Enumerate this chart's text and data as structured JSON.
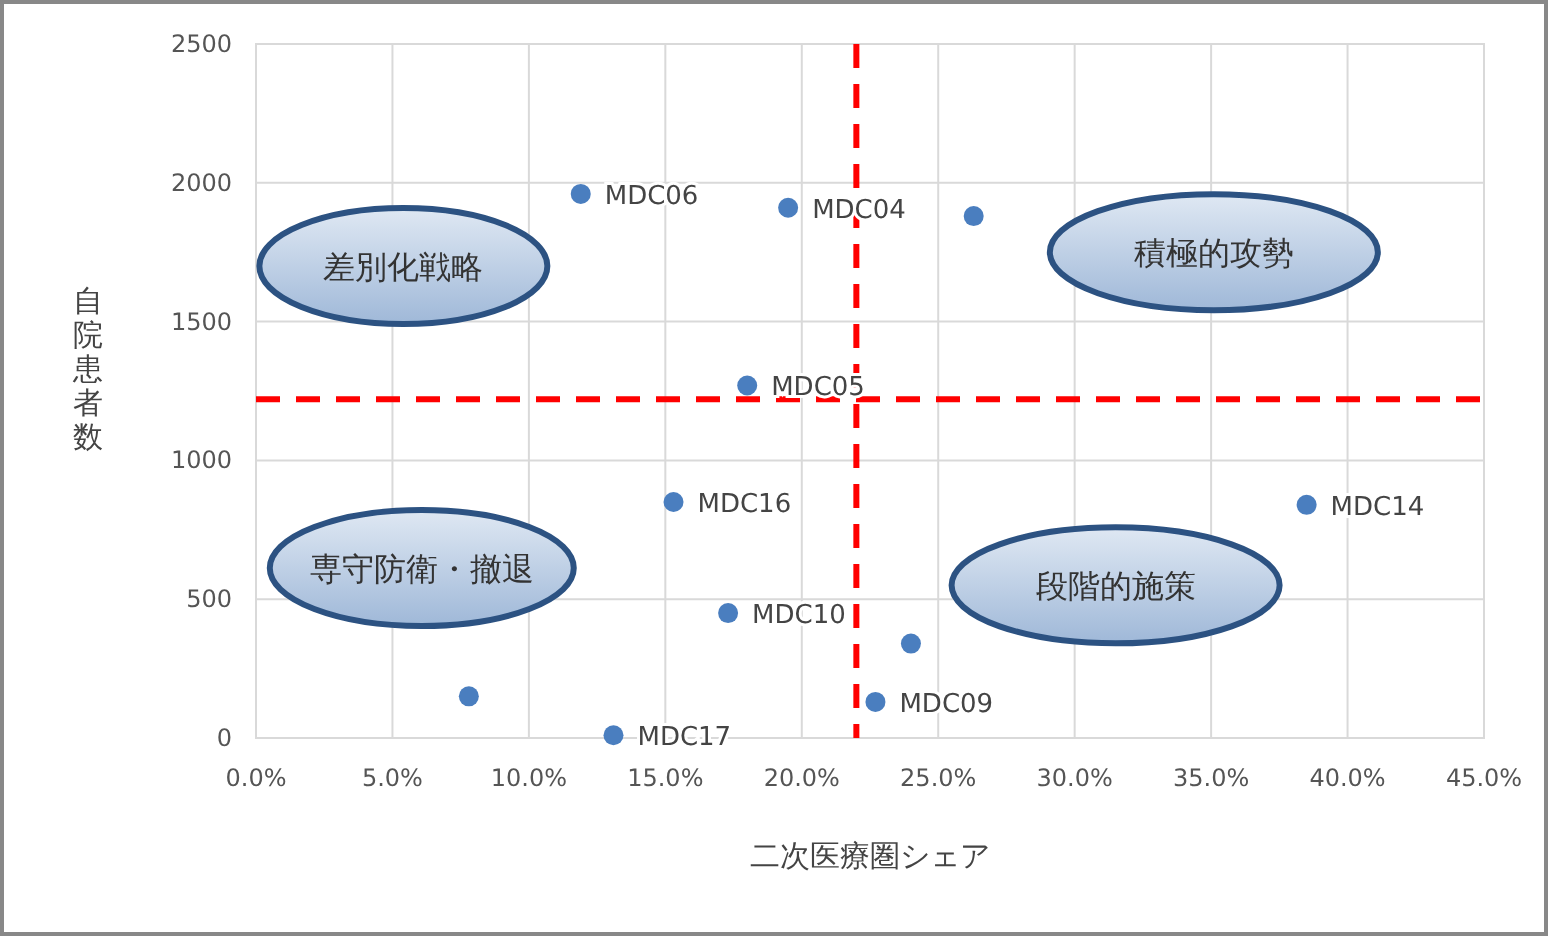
{
  "chart_data": {
    "type": "scatter",
    "xlabel": "二次医療圏シェア",
    "ylabel": "自院患者数",
    "xlim": [
      0,
      45
    ],
    "ylim": [
      0,
      2500
    ],
    "xticks": [
      {
        "value": 0,
        "label": "0.0%"
      },
      {
        "value": 5,
        "label": "5.0%"
      },
      {
        "value": 10,
        "label": "10.0%"
      },
      {
        "value": 15,
        "label": "15.0%"
      },
      {
        "value": 20,
        "label": "20.0%"
      },
      {
        "value": 25,
        "label": "25.0%"
      },
      {
        "value": 30,
        "label": "30.0%"
      },
      {
        "value": 35,
        "label": "35.0%"
      },
      {
        "value": 40,
        "label": "40.0%"
      },
      {
        "value": 45,
        "label": "45.0%"
      }
    ],
    "yticks": [
      0,
      500,
      1000,
      1500,
      2000,
      2500
    ],
    "grid": true,
    "marker": "circle",
    "series": [
      {
        "color": "#4a7ebf",
        "x": [
          19.5,
          26.3,
          11.9,
          18.0,
          15.3,
          17.3,
          7.8,
          13.1,
          22.7,
          24.0,
          38.5
        ],
        "values": [
          1910,
          1880,
          1960,
          1270,
          850,
          450,
          150,
          10,
          130,
          340,
          840
        ],
        "value_labels": [
          "MDC04",
          null,
          "MDC06",
          "MDC05",
          "MDC16",
          "MDC10",
          null,
          "MDC17",
          "MDC09",
          null,
          "MDC14"
        ]
      }
    ],
    "ref_lines": [
      {
        "axis": "x",
        "value": 22,
        "color": "#ff0000",
        "line_style": "dashed"
      },
      {
        "axis": "y",
        "value": 1220,
        "color": "#ff0000",
        "line_style": "dashed"
      }
    ],
    "annotations": [
      "差別化戦略",
      "積極的攻勢",
      "専守防衛・撤退",
      "段階的施策"
    ]
  }
}
